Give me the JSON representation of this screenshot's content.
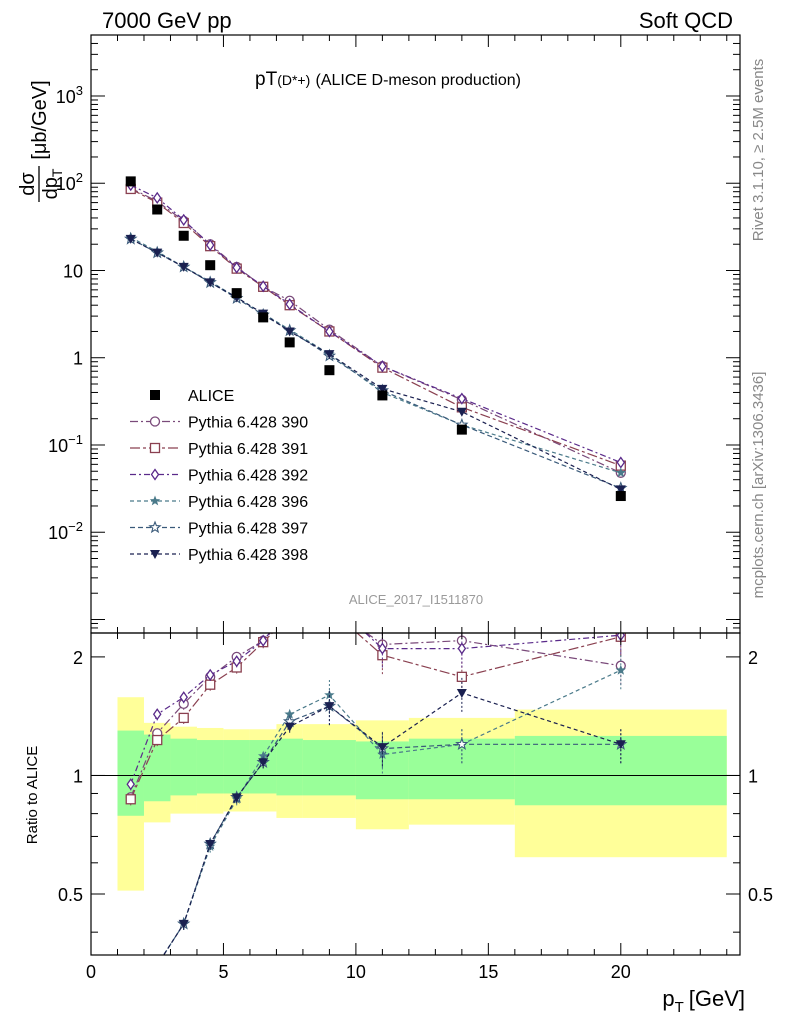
{
  "header": {
    "left": "7000 GeV pp",
    "right": "Soft QCD"
  },
  "title": {
    "prefix": "pT",
    "particle": "(D*+)",
    "suffix": "(ALICE D-meson production)"
  },
  "side_labels": {
    "rivet": "Rivet 3.1.10, ≥ 2.5M events",
    "mcplots": "mcplots.cern.ch [arXiv:1306.3436]"
  },
  "watermark": "ALICE_2017_I1511870",
  "axes": {
    "y_main_label_num": "dσ",
    "y_main_label_den": "dp",
    "y_main_label_den_sub": "T",
    "y_main_label_unit": "[μb/GeV]",
    "y_ratio_label": "Ratio to ALICE",
    "x_label": "p",
    "x_label_sub": "T",
    "x_label_unit": "[GeV]",
    "x_ticks": [
      "0",
      "5",
      "10",
      "15",
      "20"
    ],
    "y_main_ticks": [
      "10",
      "1",
      "10",
      "10"
    ],
    "y_ratio_ticks": [
      "0.5",
      "1",
      "2"
    ]
  },
  "legend": {
    "entries": [
      "ALICE",
      "Pythia 6.428 390",
      "Pythia 6.428 391",
      "Pythia 6.428 392",
      "Pythia 6.428 396",
      "Pythia 6.428 397",
      "Pythia 6.428 398"
    ]
  },
  "chart_data": {
    "type": "scatter",
    "x_range": [
      0,
      24.5
    ],
    "y_main_range_log": [
      0.0007,
      5000
    ],
    "y_ratio_range": [
      0.35,
      2.3
    ],
    "bin_edges": [
      1,
      2,
      3,
      4,
      5,
      6,
      7,
      8,
      10,
      12,
      16,
      24
    ],
    "x": [
      1.5,
      2.5,
      3.5,
      4.5,
      5.5,
      6.5,
      7.5,
      9,
      11,
      14,
      20
    ],
    "data": {
      "name": "ALICE",
      "values": [
        105,
        50,
        25,
        11.5,
        5.5,
        2.9,
        1.5,
        0.72,
        0.37,
        0.15,
        0.026
      ]
    },
    "ratio_band_green": [
      {
        "lo": 0.79,
        "hi": 1.3
      },
      {
        "lo": 0.86,
        "hi": 1.27
      },
      {
        "lo": 0.89,
        "hi": 1.24
      },
      {
        "lo": 0.9,
        "hi": 1.23
      },
      {
        "lo": 0.9,
        "hi": 1.23
      },
      {
        "lo": 0.9,
        "hi": 1.23
      },
      {
        "lo": 0.89,
        "hi": 1.24
      },
      {
        "lo": 0.89,
        "hi": 1.23
      },
      {
        "lo": 0.87,
        "hi": 1.22
      },
      {
        "lo": 0.87,
        "hi": 1.24
      },
      {
        "lo": 0.84,
        "hi": 1.26
      }
    ],
    "ratio_band_yellow": [
      {
        "lo": 0.51,
        "hi": 1.58
      },
      {
        "lo": 0.76,
        "hi": 1.36
      },
      {
        "lo": 0.8,
        "hi": 1.33
      },
      {
        "lo": 0.8,
        "hi": 1.32
      },
      {
        "lo": 0.81,
        "hi": 1.31
      },
      {
        "lo": 0.81,
        "hi": 1.31
      },
      {
        "lo": 0.78,
        "hi": 1.35
      },
      {
        "lo": 0.78,
        "hi": 1.35
      },
      {
        "lo": 0.73,
        "hi": 1.38
      },
      {
        "lo": 0.75,
        "hi": 1.4
      },
      {
        "lo": 0.62,
        "hi": 1.47
      }
    ],
    "series": [
      {
        "name": "Pythia 6.428 390",
        "color": "#7a4a7a",
        "marker": "circle-open",
        "dash": "8,3,2,3",
        "values": [
          88,
          62,
          37,
          20,
          11,
          6.5,
          4.5,
          2.1,
          0.8,
          0.33,
          0.048
        ],
        "ratio": [
          0.88,
          1.28,
          1.52,
          1.78,
          2.0,
          2.2,
          2.6,
          2.7,
          2.15,
          2.2,
          1.9
        ]
      },
      {
        "name": "Pythia 6.428 391",
        "color": "#8a4050",
        "marker": "square-open",
        "dash": "10,3,3,3",
        "values": [
          86,
          60,
          35,
          19,
          10.5,
          6.5,
          4.0,
          2.0,
          0.77,
          0.27,
          0.058
        ],
        "ratio": [
          0.87,
          1.23,
          1.4,
          1.7,
          1.88,
          2.18,
          2.55,
          2.65,
          2.02,
          1.78,
          2.25
        ]
      },
      {
        "name": "Pythia 6.428 392",
        "color": "#5a2a8a",
        "marker": "diamond-open",
        "dash": "6,3,2,3",
        "values": [
          95,
          68,
          38,
          19.5,
          10.8,
          6.6,
          4.1,
          2.0,
          0.8,
          0.34,
          0.063
        ],
        "ratio": [
          0.95,
          1.43,
          1.58,
          1.8,
          1.95,
          2.2,
          2.65,
          2.8,
          2.1,
          2.1,
          2.27
        ]
      },
      {
        "name": "Pythia 6.428 396",
        "color": "#4a7a8a",
        "marker": "star-filled",
        "dash": "4,3",
        "values": [
          24,
          16.5,
          11,
          7.5,
          4.9,
          3.2,
          2.1,
          1.1,
          0.4,
          0.17,
          0.048
        ],
        "ratio": [
          0.27,
          0.33,
          0.42,
          0.66,
          0.87,
          1.12,
          1.43,
          1.6,
          1.13,
          1.2,
          1.85
        ]
      },
      {
        "name": "Pythia 6.428 397",
        "color": "#3a5a7a",
        "marker": "star-open",
        "dash": "5,3",
        "values": [
          23,
          16,
          11,
          7.3,
          4.8,
          3.1,
          2.05,
          1.05,
          0.42,
          0.17,
          0.032
        ],
        "ratio": [
          0.27,
          0.33,
          0.42,
          0.67,
          0.88,
          1.08,
          1.37,
          1.5,
          1.17,
          1.2,
          1.2
        ]
      },
      {
        "name": "Pythia 6.428 398",
        "color": "#1a2050",
        "marker": "triangle-down-filled",
        "dash": "4,3",
        "values": [
          23,
          16,
          11,
          7.3,
          4.9,
          3.2,
          2.0,
          1.1,
          0.44,
          0.24,
          0.031
        ],
        "ratio": [
          0.27,
          0.33,
          0.42,
          0.67,
          0.88,
          1.08,
          1.33,
          1.5,
          1.18,
          1.62,
          1.2
        ]
      }
    ]
  }
}
